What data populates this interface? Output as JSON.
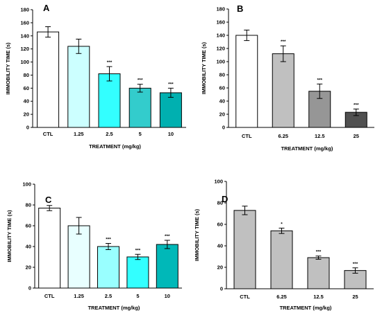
{
  "chart_data": [
    {
      "type": "bar",
      "panel_label": "A",
      "categories": [
        "CTL",
        "1.25",
        "2.5",
        "5",
        "10"
      ],
      "values": [
        146,
        124,
        82,
        60,
        53
      ],
      "errors": [
        8,
        11,
        11,
        6,
        7
      ],
      "significance": [
        "",
        "",
        "***",
        "***",
        "***"
      ],
      "colors": [
        "#ffffff",
        "#ccffff",
        "#33ffff",
        "#33cccc",
        "#00b0b0"
      ],
      "xlabel": "TREATMENT (mg/kg)",
      "ylabel": "IMMOBILITY TIME (s)",
      "ylim": [
        0,
        180
      ],
      "yticks": [
        0,
        20,
        40,
        60,
        80,
        100,
        120,
        140,
        160,
        180
      ]
    },
    {
      "type": "bar",
      "panel_label": "B",
      "categories": [
        "CTL",
        "6.25",
        "12.5",
        "25"
      ],
      "values": [
        140,
        112,
        55,
        23
      ],
      "errors": [
        8,
        12,
        11,
        5
      ],
      "significance": [
        "",
        "***",
        "***",
        "***"
      ],
      "colors": [
        "#ffffff",
        "#c0c0c0",
        "#969696",
        "#505050"
      ],
      "xlabel": "TREATMENT (mg/kg)",
      "ylabel": "IMMOBILITY TIME (s)",
      "ylim": [
        0,
        180
      ],
      "yticks": [
        0,
        20,
        40,
        60,
        80,
        100,
        120,
        140,
        160,
        180
      ]
    },
    {
      "type": "bar",
      "panel_label": "C",
      "categories": [
        "CTL",
        "1.25",
        "2.5",
        "5",
        "10"
      ],
      "values": [
        77,
        60,
        40,
        30,
        42
      ],
      "errors": [
        2.5,
        8,
        3,
        2.5,
        4
      ],
      "significance": [
        "",
        "",
        "***",
        "***",
        "***"
      ],
      "colors": [
        "#ffffff",
        "#e8ffff",
        "#99ffff",
        "#33ffff",
        "#00b8b8"
      ],
      "xlabel": "TREATMENT (mg/kg)",
      "ylabel": "IMMOBILITY TIME (s)",
      "ylim": [
        0,
        100
      ],
      "yticks": [
        0,
        20,
        40,
        60,
        80,
        100
      ]
    },
    {
      "type": "bar",
      "panel_label": "D",
      "categories": [
        "CTL",
        "6.25",
        "12.5",
        "25"
      ],
      "values": [
        73,
        54,
        29,
        17
      ],
      "errors": [
        4,
        2.5,
        1.5,
        2.5
      ],
      "significance": [
        "",
        "*",
        "***",
        "***"
      ],
      "colors": [
        "#c0c0c0",
        "#c0c0c0",
        "#c0c0c0",
        "#c0c0c0"
      ],
      "xlabel": "TREATMENT (mg/kg)",
      "ylabel": "IMMOBILITY TIME (s)",
      "ylim": [
        0,
        100
      ],
      "yticks": [
        0,
        20,
        40,
        60,
        80,
        100
      ]
    }
  ]
}
